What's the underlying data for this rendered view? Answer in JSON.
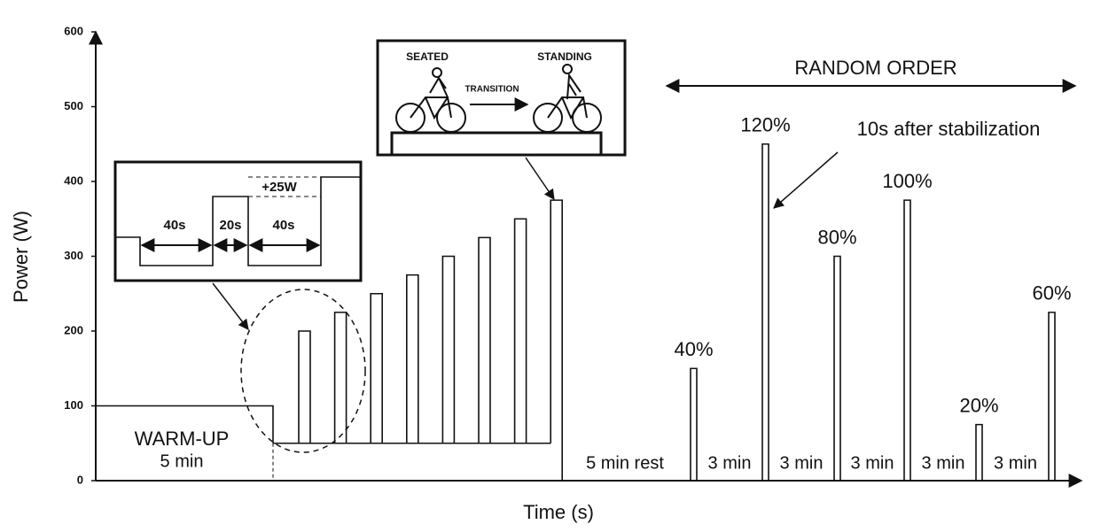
{
  "chart_data": {
    "type": "protocol",
    "x_label": "Time (s)",
    "y_label": "Power (W)",
    "ylim": [
      0,
      600
    ],
    "yticks": [
      0,
      100,
      200,
      300,
      400,
      500,
      600
    ],
    "warmup": {
      "label": "WARM-UP",
      "duration": "5 min",
      "value": 100
    },
    "ramp": {
      "base": 50,
      "peaks": [
        200,
        225,
        250,
        275,
        300,
        325,
        350,
        375
      ]
    },
    "rest_label": "5 min rest",
    "random": {
      "label": "RANDOM ORDER",
      "bouts": [
        {
          "label": "40%",
          "value": 150
        },
        {
          "label": "120%",
          "value": 450
        },
        {
          "label": "80%",
          "value": 300
        },
        {
          "label": "100%",
          "value": 375
        },
        {
          "label": "20%",
          "value": 75
        },
        {
          "label": "60%",
          "value": 225
        }
      ],
      "intervals": [
        "3 min",
        "3 min",
        "3 min",
        "3 min",
        "3 min"
      ]
    },
    "annotation": "10s after stabilization",
    "inset_steps": {
      "first": "40s",
      "second": "20s",
      "third": "40s",
      "increment": "+25W"
    },
    "inset_bike": {
      "left": "SEATED",
      "middle": "TRANSITION",
      "right": "STANDING"
    }
  }
}
